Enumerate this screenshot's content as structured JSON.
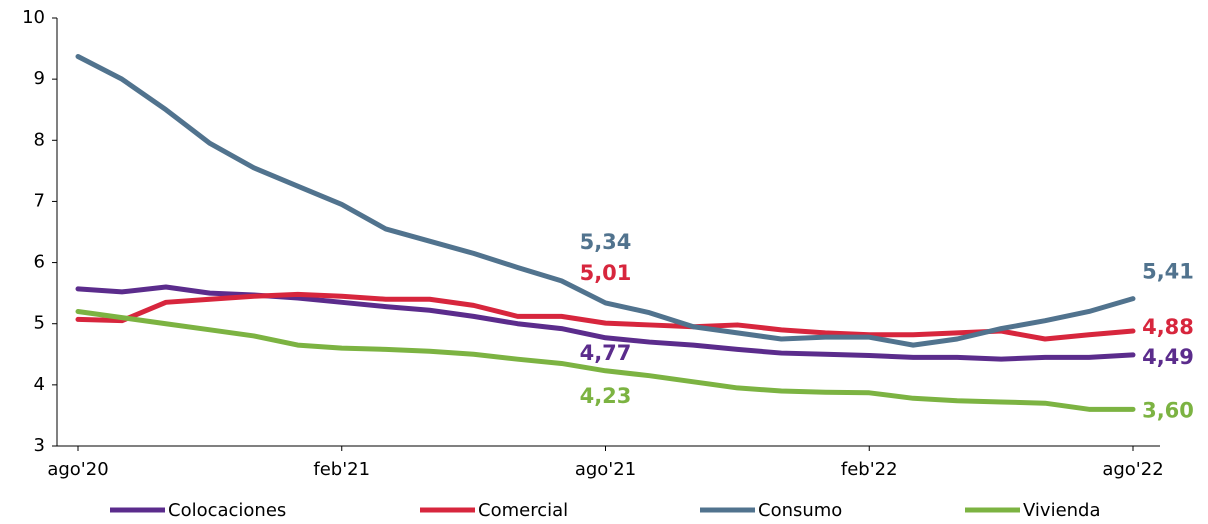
{
  "chart_data": {
    "type": "line",
    "categories": [
      "ago'20",
      null,
      null,
      null,
      null,
      null,
      "feb'21",
      null,
      null,
      null,
      null,
      null,
      "ago'21",
      null,
      null,
      null,
      null,
      null,
      "feb'22",
      null,
      null,
      null,
      null,
      null,
      "ago'22"
    ],
    "ylim": [
      3,
      10
    ],
    "yticks": [
      3,
      4,
      5,
      6,
      7,
      8,
      9,
      10
    ],
    "series": [
      {
        "name": "Colocaciones",
        "color": "#5b2c8c",
        "values": [
          5.57,
          5.52,
          5.6,
          5.5,
          5.47,
          5.42,
          5.35,
          5.28,
          5.22,
          5.12,
          5.0,
          4.92,
          4.77,
          4.7,
          4.65,
          4.58,
          4.52,
          4.5,
          4.48,
          4.45,
          4.45,
          4.42,
          4.45,
          4.45,
          4.49
        ],
        "value_labels": [
          null,
          null,
          null,
          null,
          null,
          null,
          null,
          null,
          null,
          null,
          null,
          null,
          "4,77",
          null,
          null,
          null,
          null,
          null,
          null,
          null,
          null,
          null,
          null,
          null,
          "4,49"
        ]
      },
      {
        "name": "Comercial",
        "color": "#d7263d",
        "values": [
          5.07,
          5.05,
          5.35,
          5.4,
          5.45,
          5.48,
          5.45,
          5.4,
          5.4,
          5.3,
          5.12,
          5.12,
          5.01,
          4.98,
          4.95,
          4.98,
          4.9,
          4.85,
          4.82,
          4.82,
          4.85,
          4.88,
          4.75,
          4.82,
          4.88
        ],
        "value_labels": [
          null,
          null,
          null,
          null,
          null,
          null,
          null,
          null,
          null,
          null,
          null,
          null,
          "5,01",
          null,
          null,
          null,
          null,
          null,
          null,
          null,
          null,
          null,
          null,
          null,
          "4,88"
        ]
      },
      {
        "name": "Consumo",
        "color": "#51738e",
        "values": [
          9.37,
          9.0,
          8.5,
          7.95,
          7.55,
          7.25,
          6.95,
          6.55,
          6.35,
          6.15,
          5.92,
          5.7,
          5.34,
          5.18,
          4.95,
          4.85,
          4.75,
          4.78,
          4.78,
          4.65,
          4.75,
          4.92,
          5.05,
          5.2,
          5.41
        ],
        "value_labels": [
          null,
          null,
          null,
          null,
          null,
          null,
          null,
          null,
          null,
          null,
          null,
          null,
          "5,34",
          null,
          null,
          null,
          null,
          null,
          null,
          null,
          null,
          null,
          null,
          null,
          "5,41"
        ]
      },
      {
        "name": "Vivienda",
        "color": "#7cb342",
        "values": [
          5.2,
          5.1,
          5.0,
          4.9,
          4.8,
          4.65,
          4.6,
          4.58,
          4.55,
          4.5,
          4.42,
          4.35,
          4.23,
          4.15,
          4.05,
          3.95,
          3.9,
          3.88,
          3.87,
          3.78,
          3.74,
          3.72,
          3.7,
          3.6,
          3.6
        ],
        "value_labels": [
          null,
          null,
          null,
          null,
          null,
          null,
          null,
          null,
          null,
          null,
          null,
          null,
          "4,23",
          null,
          null,
          null,
          null,
          null,
          null,
          null,
          null,
          null,
          null,
          null,
          "3,60"
        ]
      }
    ]
  }
}
